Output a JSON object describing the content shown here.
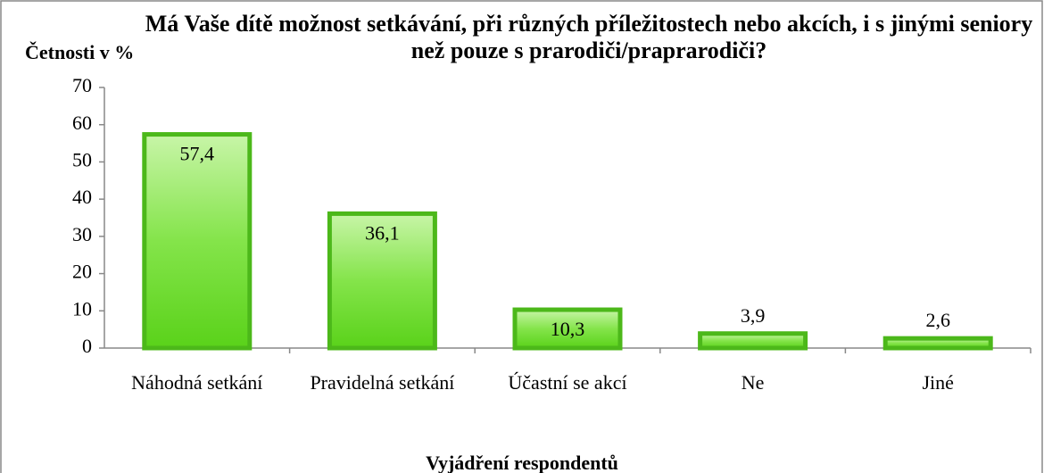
{
  "chart_data": {
    "type": "bar",
    "title": "Má Vaše dítě možnost setkávání, při různých příležitostech nebo akcích, i s jinými seniory než pouze s prarodiči/praprarodiči?",
    "y_label": "Četnosti v %",
    "x_label": "Vyjádření respondentů",
    "categories": [
      "Náhodná setkání",
      "Pravidelná setkání",
      "Účastní se akcí",
      "Ne",
      "Jiné"
    ],
    "values": [
      57.4,
      36.1,
      10.3,
      3.9,
      2.6
    ],
    "value_labels": [
      "57,4",
      "36,1",
      "10,3",
      "3,9",
      "2,6"
    ],
    "color": "#66dd22",
    "ylim": [
      0,
      70
    ],
    "yticks": [
      0,
      10,
      20,
      30,
      40,
      50,
      60,
      70
    ],
    "grid": false
  }
}
